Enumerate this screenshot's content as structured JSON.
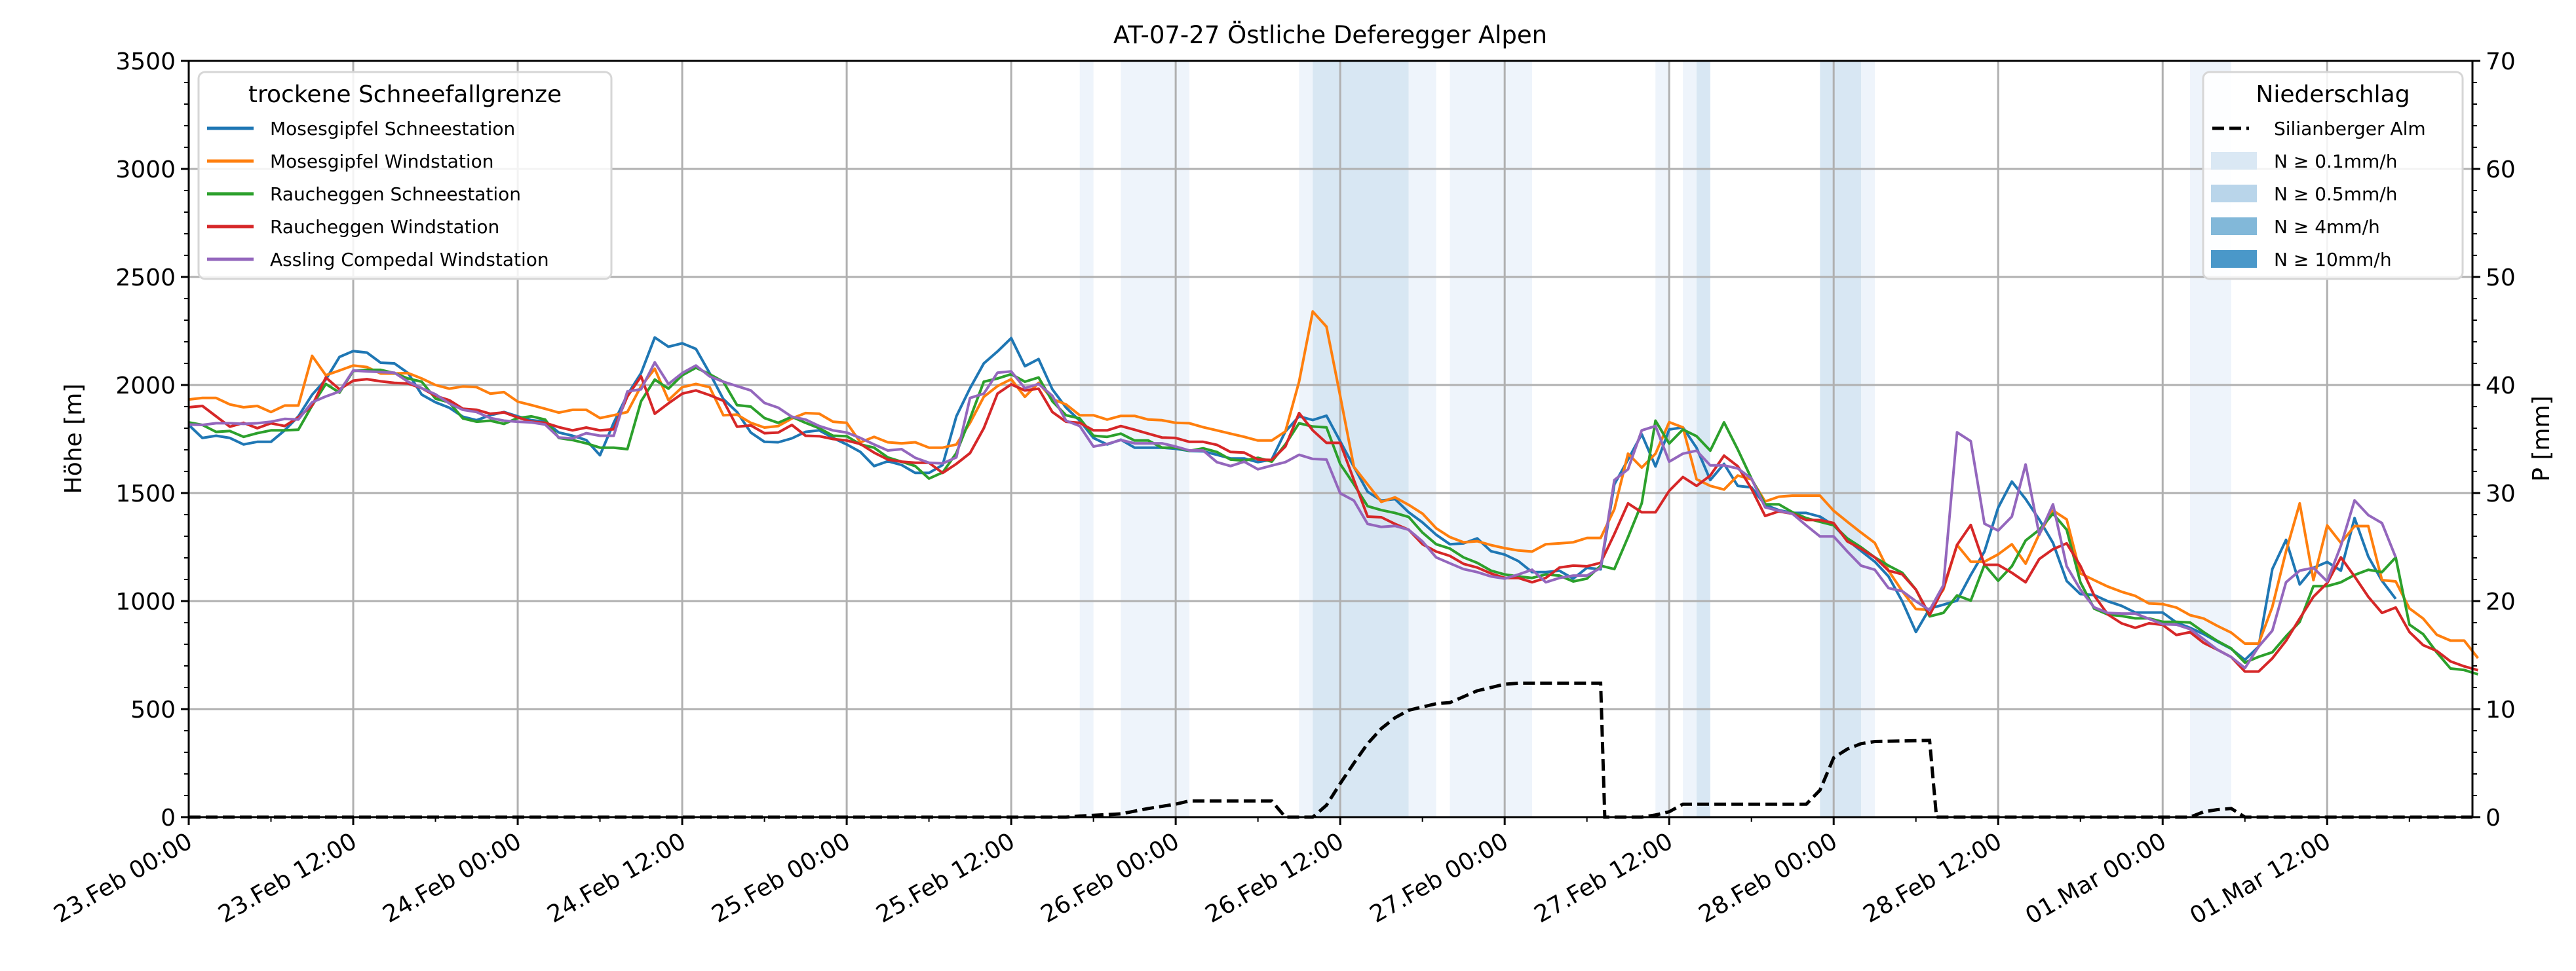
{
  "chart_data": {
    "type": "line",
    "title": "AT-07-27 Östliche Deferegger Alpen",
    "ylabel": "Höhe [m]",
    "ylabel_right": "P [mm]",
    "xlabel": "",
    "x_unit": "hours since 23.Feb 00:00",
    "xlim": [
      0,
      166.6
    ],
    "ylim": [
      0,
      3500
    ],
    "ylim_right": [
      0,
      70
    ],
    "grid": true,
    "x_tick_labels": [
      "23.Feb 00:00",
      "23.Feb 12:00",
      "24.Feb 00:00",
      "24.Feb 12:00",
      "25.Feb 00:00",
      "25.Feb 12:00",
      "26.Feb 00:00",
      "26.Feb 12:00",
      "27.Feb 00:00",
      "27.Feb 12:00",
      "28.Feb 00:00",
      "28.Feb 12:00",
      "01.Mar 00:00",
      "01.Mar 12:00"
    ],
    "x_tick_hours": [
      0,
      12,
      24,
      36,
      48,
      60,
      72,
      84,
      96,
      108,
      120,
      132,
      144,
      156
    ],
    "y_ticks": [
      "0",
      "500",
      "1000",
      "1500",
      "2000",
      "2500",
      "3000",
      "3500"
    ],
    "y_ticks_right": [
      "0",
      "10",
      "20",
      "30",
      "40",
      "50",
      "60",
      "70"
    ],
    "legend_left": {
      "title": "trockene Schneefallgrenze",
      "placement": "top-left"
    },
    "legend_right": {
      "title": "Niederschlag",
      "placement": "top-right",
      "items": [
        {
          "label": "Silianberger Alm",
          "kind": "dashed-line",
          "color": "#000000"
        },
        {
          "label": "N ≥ 0.1mm/h",
          "kind": "patch",
          "color": "#dae8f4"
        },
        {
          "label": "N ≥ 0.5mm/h",
          "kind": "patch",
          "color": "#b9d5ea"
        },
        {
          "label": "N ≥ 4mm/h",
          "kind": "patch",
          "color": "#82b8d9"
        },
        {
          "label": "N ≥ 10mm/h",
          "kind": "patch",
          "color": "#4a98c9"
        }
      ]
    },
    "series": [
      {
        "name": "Mosesgipfel Schneestation",
        "color": "#1f77b4",
        "start_hour": 0,
        "values": [
          1815,
          1755,
          1765,
          1755,
          1725,
          1737,
          1737,
          1790,
          1855,
          1955,
          2025,
          2130,
          2157,
          2150,
          2103,
          2100,
          2055,
          1955,
          1920,
          1895,
          1853,
          1837,
          1860,
          1875,
          1855,
          1837,
          1830,
          1780,
          1765,
          1745,
          1675,
          1825,
          1955,
          2055,
          2220,
          2177,
          2193,
          2167,
          2055,
          1935,
          1875,
          1780,
          1737,
          1735,
          1753,
          1783,
          1790,
          1755,
          1725,
          1690,
          1625,
          1647,
          1630,
          1593,
          1593,
          1630,
          1855,
          1985,
          2100,
          2155,
          2217,
          2087,
          2120,
          1980,
          1895,
          1835,
          1755,
          1725,
          1747,
          1710,
          1710,
          1710,
          1705,
          1695,
          1693,
          1677,
          1660,
          1660,
          1643,
          1655,
          1785,
          1855,
          1838,
          1858,
          1740,
          1621,
          1506,
          1465,
          1472,
          1411,
          1364,
          1307,
          1263,
          1267,
          1290,
          1231,
          1215,
          1185,
          1134,
          1134,
          1140,
          1104,
          1154,
          1147,
          1540,
          1655,
          1772,
          1623,
          1794,
          1804,
          1709,
          1560,
          1635,
          1533,
          1526,
          1445,
          1421,
          1408,
          1408,
          1391,
          1351,
          1283,
          1232,
          1182,
          1114,
          999,
          857,
          965,
          983,
          1002,
          1121,
          1229,
          1432,
          1553,
          1472,
          1377,
          1269,
          1093,
          1032,
          1028,
          999,
          978,
          947,
          947,
          947,
          901,
          876,
          847,
          812,
          779,
          728,
          789,
          1148,
          1283,
          1077,
          1154,
          1181,
          1141,
          1384,
          1206,
          1094,
          1010
        ]
      },
      {
        "name": "Mosesgipfel Windstation",
        "color": "#ff7f0e",
        "start_hour": 0,
        "values": [
          1933,
          1940,
          1940,
          1910,
          1897,
          1903,
          1875,
          1905,
          1905,
          2135,
          2045,
          2067,
          2090,
          2083,
          2053,
          2053,
          2055,
          2030,
          2000,
          1983,
          1993,
          1990,
          1960,
          1967,
          1923,
          1907,
          1890,
          1872,
          1885,
          1885,
          1847,
          1860,
          1875,
          1995,
          2075,
          1930,
          1990,
          2005,
          1990,
          1860,
          1863,
          1825,
          1803,
          1810,
          1845,
          1870,
          1867,
          1830,
          1825,
          1735,
          1760,
          1735,
          1730,
          1735,
          1710,
          1710,
          1725,
          1825,
          1945,
          1995,
          2027,
          1945,
          2010,
          1935,
          1910,
          1860,
          1860,
          1840,
          1857,
          1857,
          1840,
          1837,
          1825,
          1823,
          1805,
          1790,
          1775,
          1760,
          1743,
          1743,
          1785,
          2015,
          2340,
          2270,
          1950,
          1621,
          1540,
          1459,
          1480,
          1445,
          1405,
          1337,
          1296,
          1272,
          1277,
          1259,
          1245,
          1234,
          1229,
          1263,
          1267,
          1272,
          1292,
          1292,
          1425,
          1682,
          1618,
          1682,
          1828,
          1804,
          1564,
          1533,
          1516,
          1581,
          1564,
          1461,
          1483,
          1488,
          1488,
          1488,
          1418,
          1367,
          1317,
          1269,
          1141,
          1046,
          963,
          960,
          1053,
          1260,
          1182,
          1182,
          1216,
          1263,
          1173,
          1311,
          1419,
          1378,
          1128,
          1097,
          1067,
          1043,
          1024,
          989,
          986,
          970,
          935,
          919,
          885,
          854,
          803,
          803,
          973,
          1230,
          1452,
          1097,
          1350,
          1269,
          1347,
          1347,
          1097,
          1091,
          966,
          919,
          844,
          817,
          817,
          736
        ]
      },
      {
        "name": "Raucheggen Schneestation",
        "color": "#2ca02c",
        "start_hour": 0,
        "values": [
          1827,
          1815,
          1783,
          1787,
          1760,
          1777,
          1790,
          1790,
          1793,
          1905,
          2005,
          1965,
          2065,
          2070,
          2070,
          2055,
          2030,
          2015,
          1937,
          1920,
          1845,
          1830,
          1835,
          1820,
          1847,
          1855,
          1840,
          1755,
          1745,
          1730,
          1710,
          1710,
          1703,
          1925,
          2025,
          1983,
          2045,
          2080,
          2050,
          2015,
          1907,
          1900,
          1847,
          1825,
          1853,
          1825,
          1800,
          1765,
          1763,
          1725,
          1710,
          1665,
          1645,
          1625,
          1567,
          1595,
          1685,
          1845,
          2015,
          2030,
          2050,
          2015,
          2035,
          1925,
          1860,
          1845,
          1765,
          1760,
          1775,
          1743,
          1743,
          1710,
          1710,
          1695,
          1707,
          1690,
          1655,
          1650,
          1663,
          1645,
          1725,
          1823,
          1808,
          1804,
          1635,
          1540,
          1439,
          1421,
          1408,
          1389,
          1317,
          1263,
          1243,
          1202,
          1177,
          1141,
          1123,
          1114,
          1107,
          1123,
          1118,
          1091,
          1104,
          1164,
          1148,
          1296,
          1452,
          1835,
          1729,
          1794,
          1763,
          1696,
          1827,
          1702,
          1567,
          1448,
          1448,
          1411,
          1384,
          1367,
          1351,
          1290,
          1249,
          1202,
          1164,
          1131,
          1053,
          929,
          945,
          1026,
          1002,
          1168,
          1094,
          1161,
          1280,
          1330,
          1405,
          1330,
          1087,
          965,
          938,
          931,
          920,
          920,
          904,
          904,
          901,
          856,
          815,
          781,
          715,
          742,
          763,
          837,
          904,
          1069,
          1069,
          1087,
          1121,
          1145,
          1134,
          1202,
          891,
          847,
          762,
          688,
          681,
          661
        ]
      },
      {
        "name": "Raucheggen Windstation",
        "color": "#d62728",
        "start_hour": 0,
        "values": [
          1897,
          1903,
          1855,
          1807,
          1825,
          1800,
          1823,
          1810,
          1850,
          1905,
          2035,
          1980,
          2020,
          2027,
          2017,
          2010,
          2007,
          1985,
          1950,
          1930,
          1890,
          1885,
          1867,
          1873,
          1850,
          1830,
          1825,
          1805,
          1790,
          1803,
          1790,
          1795,
          1947,
          2040,
          1867,
          1915,
          1960,
          1975,
          1953,
          1927,
          1807,
          1813,
          1777,
          1780,
          1815,
          1765,
          1763,
          1750,
          1743,
          1727,
          1687,
          1655,
          1645,
          1640,
          1640,
          1593,
          1635,
          1685,
          1800,
          1960,
          2003,
          1975,
          1983,
          1875,
          1830,
          1825,
          1790,
          1790,
          1810,
          1793,
          1775,
          1757,
          1755,
          1737,
          1737,
          1723,
          1690,
          1687,
          1655,
          1653,
          1715,
          1870,
          1790,
          1732,
          1732,
          1560,
          1391,
          1388,
          1357,
          1330,
          1263,
          1229,
          1209,
          1172,
          1155,
          1128,
          1107,
          1107,
          1087,
          1107,
          1155,
          1164,
          1161,
          1177,
          1310,
          1452,
          1411,
          1411,
          1510,
          1574,
          1533,
          1581,
          1673,
          1624,
          1520,
          1394,
          1415,
          1404,
          1375,
          1375,
          1361,
          1276,
          1242,
          1202,
          1141,
          1124,
          1053,
          935,
          1060,
          1260,
          1352,
          1168,
          1168,
          1131,
          1087,
          1195,
          1240,
          1267,
          1163,
          1026,
          938,
          897,
          876,
          897,
          890,
          843,
          856,
          806,
          775,
          741,
          674,
          674,
          735,
          816,
          919,
          1020,
          1083,
          1202,
          1114,
          1020,
          945,
          970,
          857,
          796,
          769,
          721,
          698,
          680
        ]
      },
      {
        "name": "Assling Compedal Windstation",
        "color": "#9467bd",
        "start_hour": 0,
        "values": [
          1817,
          1815,
          1823,
          1823,
          1820,
          1823,
          1830,
          1843,
          1840,
          1920,
          1947,
          1970,
          2067,
          2063,
          2060,
          2057,
          2015,
          1985,
          1957,
          1915,
          1885,
          1875,
          1847,
          1835,
          1830,
          1827,
          1817,
          1757,
          1753,
          1777,
          1765,
          1765,
          1970,
          1980,
          2105,
          2005,
          2055,
          2090,
          2040,
          2015,
          1995,
          1975,
          1917,
          1895,
          1853,
          1840,
          1810,
          1790,
          1780,
          1755,
          1725,
          1697,
          1703,
          1663,
          1640,
          1637,
          1665,
          1940,
          1960,
          2057,
          2063,
          1985,
          2005,
          1950,
          1835,
          1810,
          1715,
          1727,
          1745,
          1730,
          1730,
          1730,
          1715,
          1697,
          1697,
          1643,
          1625,
          1645,
          1610,
          1627,
          1643,
          1677,
          1658,
          1655,
          1499,
          1465,
          1357,
          1343,
          1348,
          1330,
          1276,
          1202,
          1175,
          1148,
          1134,
          1114,
          1104,
          1123,
          1145,
          1087,
          1107,
          1118,
          1118,
          1154,
          1560,
          1610,
          1790,
          1810,
          1645,
          1682,
          1696,
          1628,
          1628,
          1614,
          1567,
          1434,
          1418,
          1404,
          1350,
          1299,
          1299,
          1229,
          1164,
          1145,
          1060,
          1046,
          999,
          958,
          1073,
          1781,
          1740,
          1358,
          1326,
          1391,
          1632,
          1307,
          1448,
          1161,
          1053,
          971,
          945,
          942,
          942,
          918,
          893,
          891,
          870,
          823,
          775,
          741,
          690,
          789,
          863,
          1087,
          1141,
          1154,
          1091,
          1256,
          1466,
          1398,
          1361,
          1202
        ]
      }
    ],
    "precipitation": {
      "name": "Silianberger Alm",
      "axis": "right",
      "unit": "mm",
      "points": [
        [
          0,
          0
        ],
        [
          64,
          0
        ],
        [
          65,
          0.1
        ],
        [
          68,
          0.3
        ],
        [
          70,
          0.8
        ],
        [
          72,
          1.2
        ],
        [
          73,
          1.5
        ],
        [
          79,
          1.5
        ],
        [
          80,
          0
        ],
        [
          82,
          0
        ],
        [
          83,
          1.1
        ],
        [
          84,
          3.1
        ],
        [
          85,
          5.0
        ],
        [
          86,
          6.8
        ],
        [
          87,
          8.2
        ],
        [
          88,
          9.2
        ],
        [
          89,
          9.9
        ],
        [
          91,
          10.5
        ],
        [
          92,
          10.6
        ],
        [
          94,
          11.7
        ],
        [
          96,
          12.3
        ],
        [
          97,
          12.4
        ],
        [
          103,
          12.4
        ],
        [
          103.3,
          0
        ],
        [
          106,
          0
        ],
        [
          107,
          0.2
        ],
        [
          108,
          0.5
        ],
        [
          109,
          1.2
        ],
        [
          110,
          1.2
        ],
        [
          118,
          1.2
        ],
        [
          119,
          2.5
        ],
        [
          120,
          5.5
        ],
        [
          121,
          6.3
        ],
        [
          122,
          6.8
        ],
        [
          123,
          7.0
        ],
        [
          127,
          7.1
        ],
        [
          127.5,
          0
        ],
        [
          146,
          0
        ],
        [
          147,
          0.5
        ],
        [
          148,
          0.7
        ],
        [
          149,
          0.8
        ],
        [
          150,
          0
        ],
        [
          166.6,
          0
        ]
      ]
    },
    "precip_bands": [
      {
        "from": 65,
        "to": 66,
        "level": "trace",
        "color": "#eef4fb"
      },
      {
        "from": 68,
        "to": 73,
        "level": "trace",
        "color": "#eef4fb"
      },
      {
        "from": 81,
        "to": 82,
        "level": "trace",
        "color": "#eef4fb"
      },
      {
        "from": 82,
        "to": 89,
        "level": "N>=0.1",
        "color": "#d8e7f3"
      },
      {
        "from": 89,
        "to": 91,
        "level": "trace",
        "color": "#eef4fb"
      },
      {
        "from": 92,
        "to": 98,
        "level": "trace",
        "color": "#eef4fb"
      },
      {
        "from": 107,
        "to": 108,
        "level": "trace",
        "color": "#eef4fb"
      },
      {
        "from": 109,
        "to": 110,
        "level": "trace",
        "color": "#eef4fb"
      },
      {
        "from": 110,
        "to": 111,
        "level": "N>=0.1",
        "color": "#d8e7f3"
      },
      {
        "from": 119,
        "to": 122,
        "level": "N>=0.1",
        "color": "#d8e7f3"
      },
      {
        "from": 122,
        "to": 123,
        "level": "trace",
        "color": "#eef4fb"
      },
      {
        "from": 146,
        "to": 149,
        "level": "trace",
        "color": "#eef4fb"
      }
    ]
  }
}
